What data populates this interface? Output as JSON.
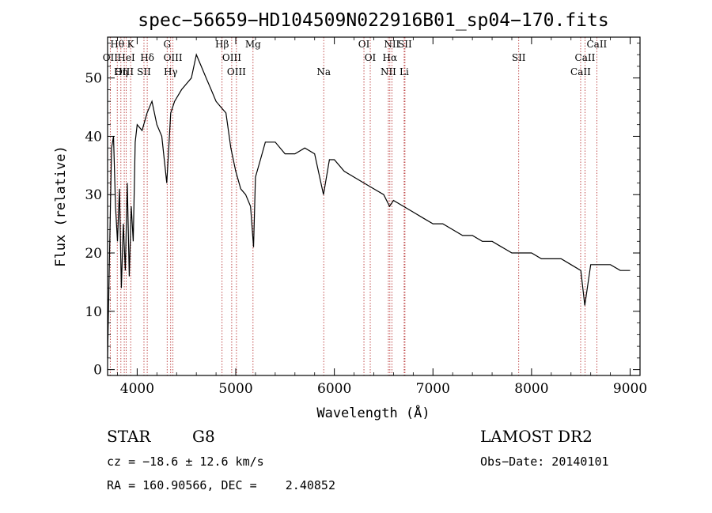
{
  "title": "spec−56659−HD104509N022916B01_sp04−170.fits",
  "chart_data": {
    "type": "line",
    "xlabel": "Wavelength (Å)",
    "ylabel": "Flux (relative)",
    "xlim": [
      3700,
      9100
    ],
    "ylim": [
      -1,
      57
    ],
    "x_ticks": [
      4000,
      5000,
      6000,
      7000,
      8000,
      9000
    ],
    "y_ticks": [
      0,
      10,
      20,
      30,
      40,
      50
    ],
    "series": [
      {
        "x": [
          3700,
          3720,
          3740,
          3760,
          3780,
          3800,
          3820,
          3840,
          3860,
          3880,
          3900,
          3920,
          3940,
          3960,
          3980,
          4000,
          4050,
          4100,
          4150,
          4200,
          4250,
          4300,
          4340,
          4380,
          4450,
          4500,
          4550,
          4600,
          4650,
          4700,
          4750,
          4800,
          4850,
          4900,
          4950,
          5000,
          5050,
          5100,
          5150,
          5180,
          5200,
          5250,
          5300,
          5400,
          5500,
          5600,
          5700,
          5800,
          5890,
          5950,
          6000,
          6100,
          6200,
          6300,
          6400,
          6500,
          6560,
          6600,
          6700,
          6800,
          6900,
          7000,
          7100,
          7200,
          7300,
          7400,
          7500,
          7600,
          7700,
          7800,
          7900,
          8000,
          8100,
          8200,
          8300,
          8400,
          8500,
          8540,
          8600,
          8700,
          8800,
          8900,
          9000
        ],
        "y": [
          2,
          20,
          38,
          40,
          28,
          22,
          31,
          14,
          25,
          17,
          32,
          16,
          28,
          22,
          39,
          42,
          41,
          44,
          46,
          42,
          40,
          32,
          44,
          46,
          48,
          49,
          50,
          54,
          52,
          50,
          48,
          46,
          45,
          44,
          38,
          34,
          31,
          30,
          28,
          21,
          33,
          36,
          39,
          39,
          37,
          37,
          38,
          37,
          30,
          36,
          36,
          34,
          33,
          32,
          31,
          30,
          28,
          29,
          28,
          27,
          26,
          25,
          25,
          24,
          23,
          23,
          22,
          22,
          21,
          20,
          20,
          20,
          19,
          19,
          19,
          18,
          17,
          11,
          18,
          18,
          18,
          17,
          17
        ]
      }
    ],
    "line_markers": [
      {
        "label": "Hθ",
        "wavelength": 3798,
        "row": 0
      },
      {
        "label": "K",
        "wavelength": 3934,
        "row": 0
      },
      {
        "label": "G",
        "wavelength": 4304,
        "row": 0
      },
      {
        "label": "Hβ",
        "wavelength": 4861,
        "row": 0
      },
      {
        "label": "Mg",
        "wavelength": 5175,
        "row": 0
      },
      {
        "label": "OI",
        "wavelength": 6300,
        "row": 0
      },
      {
        "label": "NII",
        "wavelength": 6583,
        "row": 0
      },
      {
        "label": "SII",
        "wavelength": 6716,
        "row": 0
      },
      {
        "label": "CaII",
        "wavelength": 8662,
        "row": 0
      },
      {
        "label": "OII",
        "wavelength": 3727,
        "row": 1
      },
      {
        "label": "HeI",
        "wavelength": 3889,
        "row": 1
      },
      {
        "label": "Hδ",
        "wavelength": 4102,
        "row": 1
      },
      {
        "label": "OIII",
        "wavelength": 4363,
        "row": 1
      },
      {
        "label": "OIII",
        "wavelength": 4959,
        "row": 1
      },
      {
        "label": "OI",
        "wavelength": 6364,
        "row": 1
      },
      {
        "label": "Hα",
        "wavelength": 6563,
        "row": 1
      },
      {
        "label": "SII",
        "wavelength": 7870,
        "row": 1
      },
      {
        "label": "CaII",
        "wavelength": 8542,
        "row": 1
      },
      {
        "label": "OIII",
        "wavelength": 3869,
        "row": 2
      },
      {
        "label": "Hη",
        "wavelength": 3835,
        "row": 2
      },
      {
        "label": "SII",
        "wavelength": 4069,
        "row": 2
      },
      {
        "label": "Hγ",
        "wavelength": 4340,
        "row": 2
      },
      {
        "label": "OIII",
        "wavelength": 5007,
        "row": 2
      },
      {
        "label": "Na",
        "wavelength": 5892,
        "row": 2
      },
      {
        "label": "NII",
        "wavelength": 6548,
        "row": 2
      },
      {
        "label": "Li",
        "wavelength": 6708,
        "row": 2
      },
      {
        "label": "CaII",
        "wavelength": 8498,
        "row": 2
      }
    ],
    "marker_color": "#b22222",
    "line_color": "#000000",
    "grid": false
  },
  "info": {
    "class_label": "STAR",
    "subclass": "G8",
    "survey": "LAMOST DR2",
    "redshift": "cz = −18.6 ± 12.6 km/s",
    "obs_date": "Obs−Date: 20140101",
    "coords": "RA = 160.90566, DEC =    2.40852"
  }
}
